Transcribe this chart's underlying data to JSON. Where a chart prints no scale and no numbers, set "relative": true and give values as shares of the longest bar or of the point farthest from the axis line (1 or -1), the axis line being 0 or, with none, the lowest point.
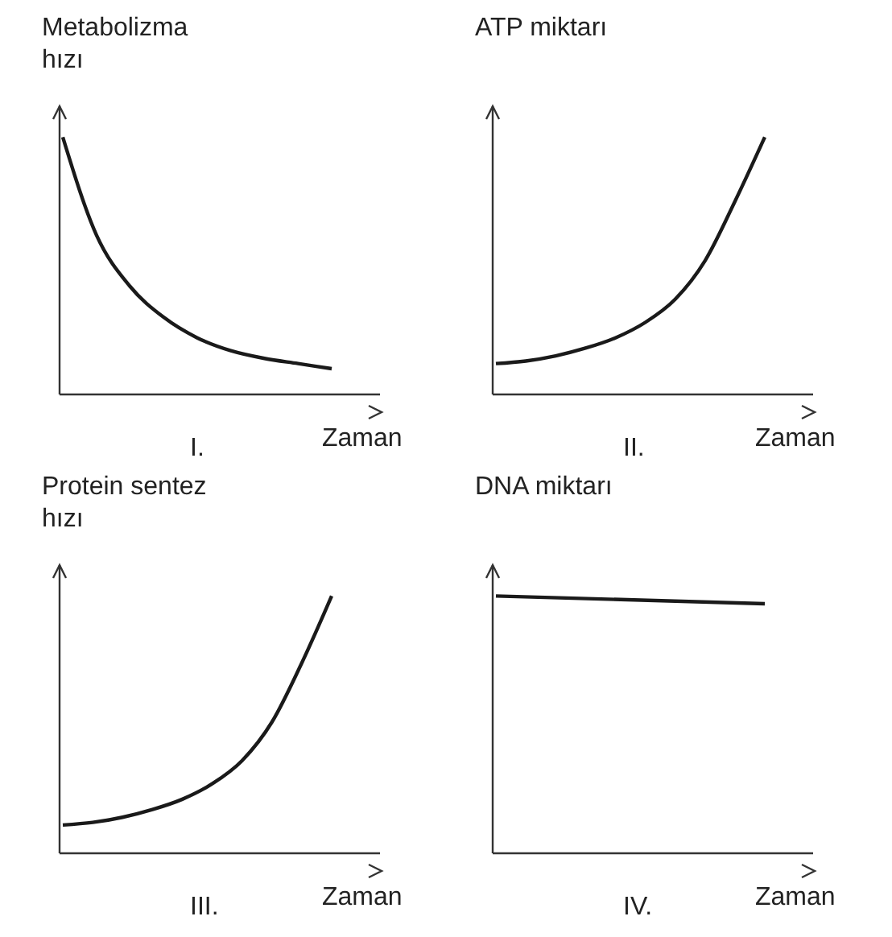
{
  "chart_data": [
    {
      "type": "line",
      "relative": true,
      "ylabel": "Metabolizma\nhızı",
      "xlabel": "Zaman",
      "annotations": [
        "I."
      ],
      "marker": "none",
      "line_style": "solid",
      "categories": [
        null,
        null,
        null,
        null,
        null,
        null,
        null,
        null,
        null
      ],
      "series": [
        {
          "color": "#1a1a1a",
          "values": [
            1,
            0.62,
            0.42,
            0.3,
            0.22,
            0.17,
            0.14,
            0.12,
            0.1
          ]
        }
      ]
    },
    {
      "type": "line",
      "relative": true,
      "ylabel": "ATP miktarı",
      "xlabel": "Zaman",
      "annotations": [
        "II."
      ],
      "marker": "none",
      "line_style": "solid",
      "categories": [
        null,
        null,
        null,
        null,
        null,
        null,
        null,
        null,
        null,
        null
      ],
      "series": [
        {
          "color": "#1a1a1a",
          "values": [
            0.12,
            0.13,
            0.15,
            0.18,
            0.22,
            0.28,
            0.37,
            0.52,
            0.75,
            1
          ]
        }
      ]
    },
    {
      "type": "line",
      "relative": true,
      "ylabel": "Protein sentez\nhızı",
      "xlabel": "Zaman",
      "annotations": [
        "III."
      ],
      "marker": "none",
      "line_style": "solid",
      "categories": [
        null,
        null,
        null,
        null,
        null,
        null,
        null,
        null,
        null,
        null
      ],
      "series": [
        {
          "color": "#1a1a1a",
          "values": [
            0.11,
            0.12,
            0.14,
            0.17,
            0.21,
            0.27,
            0.36,
            0.51,
            0.74,
            1
          ]
        }
      ]
    },
    {
      "type": "line",
      "relative": true,
      "ylabel": "DNA miktarı",
      "xlabel": "Zaman",
      "annotations": [
        "IV."
      ],
      "marker": "none",
      "line_style": "solid",
      "categories": [
        null,
        null
      ],
      "series": [
        {
          "color": "#1a1a1a",
          "values": [
            1,
            0.97
          ]
        }
      ]
    }
  ]
}
